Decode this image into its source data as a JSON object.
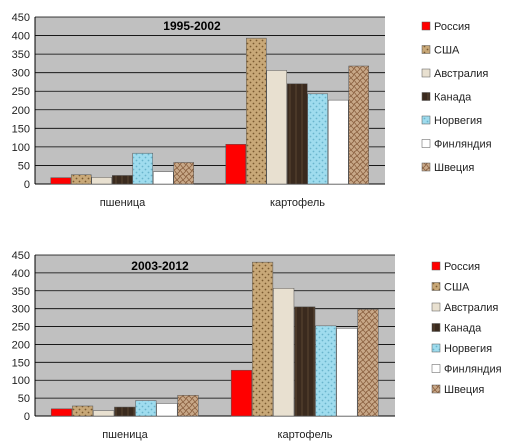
{
  "colors": {
    "plot_bg": "#c0c0c0",
    "grid": "#000000",
    "series": [
      "#ff0000",
      "#c8a878",
      "#e8e0d0",
      "#3a2a1e",
      "#9fdcee",
      "#ffffff",
      "#c8a888"
    ],
    "series_accent": [
      "#cc0000",
      "#7a5a30",
      "#c8bca8",
      "#1e140c",
      "#6ab4cc",
      "#d8d8d8",
      "#8a6040"
    ]
  },
  "chart_data": [
    {
      "type": "bar",
      "title": "1995-2002",
      "categories": [
        "пшеница",
        "картофель"
      ],
      "ylim": [
        0,
        450
      ],
      "yticks": [
        0,
        50,
        100,
        150,
        200,
        250,
        300,
        350,
        400,
        450
      ],
      "grid": true,
      "legend_position": "right",
      "series": [
        {
          "name": "Россия",
          "values": [
            17,
            107
          ]
        },
        {
          "name": "США",
          "values": [
            25,
            393
          ]
        },
        {
          "name": "Австралия",
          "values": [
            18,
            306
          ]
        },
        {
          "name": "Канада",
          "values": [
            23,
            270
          ]
        },
        {
          "name": "Норвегия",
          "values": [
            83,
            243
          ]
        },
        {
          "name": "Финляндия",
          "values": [
            33,
            226
          ]
        },
        {
          "name": "Швеция",
          "values": [
            58,
            318
          ]
        }
      ]
    },
    {
      "type": "bar",
      "title": "2003-2012",
      "categories": [
        "пшеница",
        "картофель"
      ],
      "ylim": [
        0,
        450
      ],
      "yticks": [
        0,
        50,
        100,
        150,
        200,
        250,
        300,
        350,
        400,
        450
      ],
      "grid": true,
      "legend_position": "right",
      "series": [
        {
          "name": "Россия",
          "values": [
            20,
            128
          ]
        },
        {
          "name": "США",
          "values": [
            28,
            430
          ]
        },
        {
          "name": "Австралия",
          "values": [
            15,
            357
          ]
        },
        {
          "name": "Канада",
          "values": [
            25,
            305
          ]
        },
        {
          "name": "Норвегия",
          "values": [
            43,
            252
          ]
        },
        {
          "name": "Финляндия",
          "values": [
            35,
            245
          ]
        },
        {
          "name": "Швеция",
          "values": [
            58,
            298
          ]
        }
      ]
    }
  ]
}
